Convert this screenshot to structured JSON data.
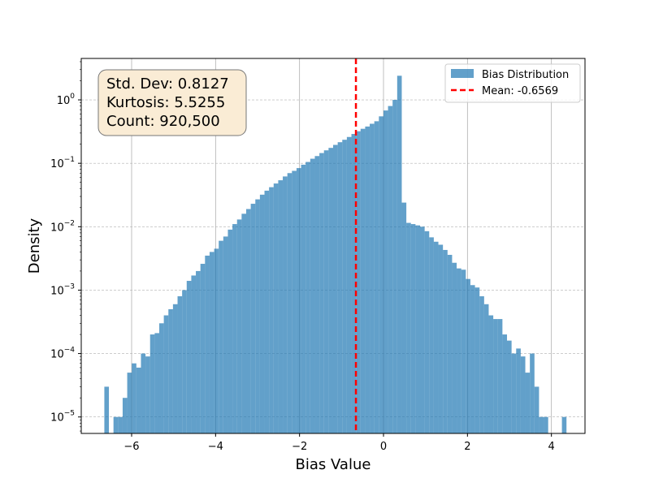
{
  "chart_data": {
    "type": "bar",
    "title": "",
    "xlabel": "Bias Value",
    "ylabel": "Density",
    "xlim": [
      -7.2,
      4.8
    ],
    "ylim": [
      5.5e-06,
      4.5
    ],
    "yscale": "log",
    "grid": true,
    "legend_position": "upper right",
    "x_ticks": [
      -6,
      -4,
      -2,
      0,
      2,
      4
    ],
    "x_tick_labels": [
      "−6",
      "−4",
      "−2",
      "0",
      "2",
      "4"
    ],
    "y_ticks": [
      1e-05,
      0.0001,
      0.001,
      0.01,
      0.1,
      1
    ],
    "y_tick_labels": [
      {
        "base": "10",
        "exp": "−5"
      },
      {
        "base": "10",
        "exp": "−4"
      },
      {
        "base": "10",
        "exp": "−3"
      },
      {
        "base": "10",
        "exp": "−2"
      },
      {
        "base": "10",
        "exp": "−1"
      },
      {
        "base": "10",
        "exp": "0"
      }
    ],
    "bin_start": -6.65,
    "bin_width": 0.109,
    "series": [
      {
        "name": "Bias Distribution",
        "color": "#1f77b4",
        "opacity": 0.7,
        "values": [
          3e-05,
          0,
          1e-05,
          1e-05,
          2e-05,
          5e-05,
          7e-05,
          6e-05,
          0.0001,
          9e-05,
          0.0002,
          0.00021,
          0.0003,
          0.0004,
          0.0005,
          0.0006,
          0.0008,
          0.001,
          0.0014,
          0.0017,
          0.002,
          0.0026,
          0.0035,
          0.004,
          0.0045,
          0.006,
          0.007,
          0.009,
          0.011,
          0.013,
          0.016,
          0.019,
          0.023,
          0.027,
          0.032,
          0.037,
          0.042,
          0.048,
          0.054,
          0.062,
          0.07,
          0.076,
          0.084,
          0.095,
          0.105,
          0.118,
          0.13,
          0.145,
          0.16,
          0.175,
          0.195,
          0.215,
          0.235,
          0.26,
          0.29,
          0.32,
          0.35,
          0.38,
          0.42,
          0.46,
          0.55,
          0.68,
          0.8,
          1.0,
          2.4,
          0.024,
          0.0115,
          0.011,
          0.0105,
          0.01,
          0.0085,
          0.0068,
          0.0058,
          0.0052,
          0.0043,
          0.0036,
          0.0027,
          0.0022,
          0.0021,
          0.0015,
          0.0012,
          0.0011,
          0.0008,
          0.0006,
          0.0004,
          0.00035,
          0.00035,
          0.0002,
          0.00016,
          0.0001,
          0.00012,
          9e-05,
          5e-05,
          0.0001,
          3e-05,
          1e-05,
          1e-05,
          0,
          0,
          0,
          1e-05
        ]
      },
      {
        "name": "Mean: -0.6569",
        "color": "#ff0000",
        "x": -0.6569
      }
    ],
    "annotation": {
      "lines": [
        "Std. Dev: 0.8127",
        "Kurtosis: 5.5255",
        "Count: 920,500"
      ],
      "background": "#faecd5",
      "border": "#777777"
    }
  }
}
